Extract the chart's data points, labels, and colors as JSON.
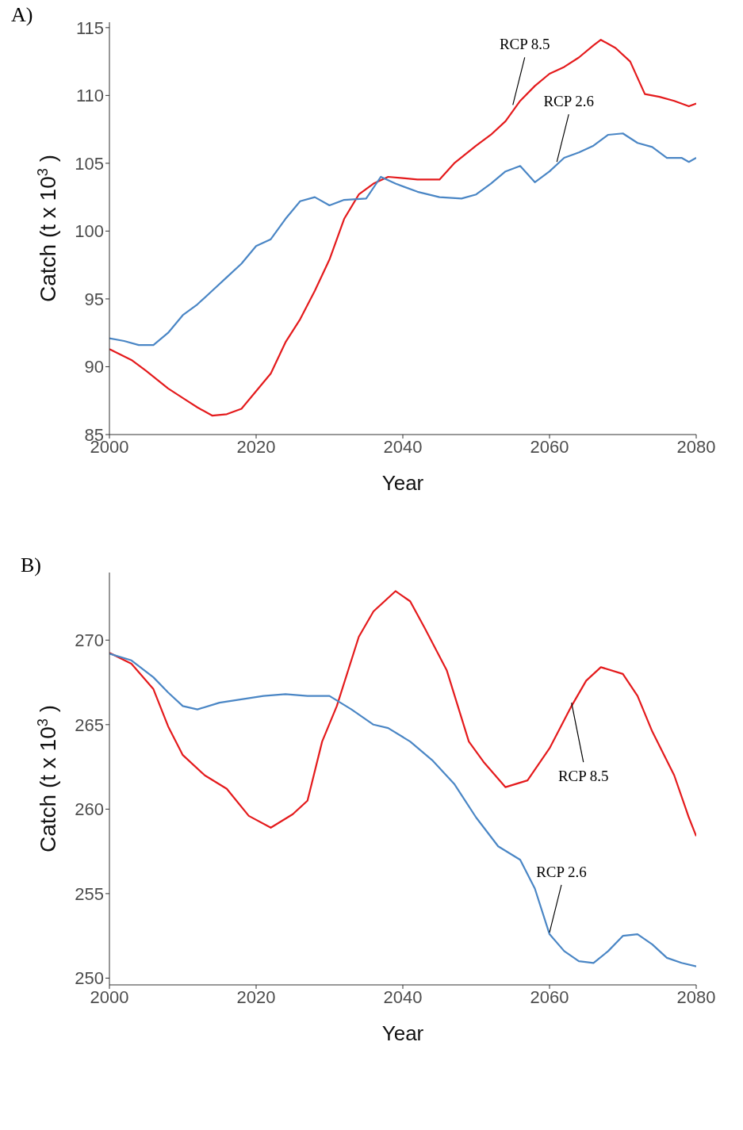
{
  "chart_data": [
    {
      "type": "line",
      "xlabel": "Year",
      "ylabel": "Catch (t x 10$^{3}$ )",
      "xlim": [
        2000,
        2080
      ],
      "xticks": [
        2000,
        2020,
        2040,
        2060,
        2080
      ],
      "ylim": [
        85,
        115.4
      ],
      "yticks": [
        85,
        90,
        95,
        100,
        105,
        110,
        115
      ],
      "grid": false,
      "legend": false,
      "marker": "none",
      "line_style": "solid",
      "annotations": [
        "A)",
        {
          "text": "RCP 8.5",
          "x": 2055,
          "y": 109.3
        },
        {
          "text": "RCP 2.6",
          "x": 2061,
          "y": 105.1
        }
      ],
      "series": [
        {
          "color": "#e41a1c",
          "x": [
            2000,
            2003,
            2005,
            2008,
            2010,
            2012,
            2014,
            2016,
            2018,
            2020,
            2022,
            2024,
            2026,
            2028,
            2030,
            2032,
            2034,
            2036,
            2038,
            2040,
            2042,
            2045,
            2047,
            2050,
            2052,
            2054,
            2056,
            2058,
            2060,
            2062,
            2064,
            2066,
            2067,
            2069,
            2071,
            2073,
            2075,
            2077,
            2079,
            2080
          ],
          "values": [
            91.3,
            90.5,
            89.7,
            88.4,
            87.7,
            87.0,
            86.4,
            86.5,
            86.9,
            88.2,
            89.5,
            91.8,
            93.5,
            95.6,
            97.9,
            100.9,
            102.7,
            103.5,
            104.0,
            103.9,
            103.8,
            103.8,
            105.0,
            106.3,
            107.1,
            108.1,
            109.6,
            110.7,
            111.6,
            112.1,
            112.8,
            113.7,
            114.1,
            113.5,
            112.5,
            110.1,
            109.9,
            109.6,
            109.2,
            109.4
          ]
        },
        {
          "color": "#4a86c5",
          "x": [
            2000,
            2002,
            2004,
            2006,
            2008,
            2010,
            2012,
            2014,
            2016,
            2018,
            2020,
            2022,
            2024,
            2026,
            2028,
            2030,
            2032,
            2035,
            2037,
            2039,
            2042,
            2045,
            2048,
            2050,
            2052,
            2054,
            2056,
            2058,
            2060,
            2062,
            2064,
            2066,
            2068,
            2070,
            2072,
            2074,
            2076,
            2078,
            2079,
            2080
          ],
          "values": [
            92.1,
            91.9,
            91.6,
            91.6,
            92.5,
            93.8,
            94.6,
            95.6,
            96.6,
            97.6,
            98.9,
            99.4,
            100.9,
            102.2,
            102.5,
            101.9,
            102.3,
            102.4,
            104.0,
            103.5,
            102.9,
            102.5,
            102.4,
            102.7,
            103.5,
            104.4,
            104.8,
            103.6,
            104.4,
            105.4,
            105.8,
            106.3,
            107.1,
            107.2,
            106.5,
            106.2,
            105.4,
            105.4,
            105.1,
            105.4
          ]
        }
      ]
    },
    {
      "type": "line",
      "xlabel": "Year",
      "ylabel": "Catch (t x 10$^{3}$ )",
      "xlim": [
        2000,
        2080
      ],
      "xticks": [
        2000,
        2020,
        2040,
        2060,
        2080
      ],
      "ylim": [
        249.6,
        274
      ],
      "yticks": [
        250,
        255,
        260,
        265,
        270
      ],
      "grid": false,
      "legend": false,
      "marker": "none",
      "line_style": "solid",
      "annotations": [
        "B)",
        {
          "text": "RCP 8.5",
          "x": 2063,
          "y": 266.3
        },
        {
          "text": "RCP 2.6",
          "x": 2060,
          "y": 252.7
        }
      ],
      "series": [
        {
          "color": "#e41a1c",
          "x": [
            2000,
            2003,
            2006,
            2008,
            2010,
            2013,
            2016,
            2019,
            2022,
            2025,
            2027,
            2029,
            2031,
            2034,
            2036,
            2039,
            2041,
            2043,
            2046,
            2049,
            2051,
            2054,
            2057,
            2060,
            2063,
            2065,
            2067,
            2070,
            2072,
            2074,
            2077,
            2079,
            2080
          ],
          "values": [
            269.25,
            268.6,
            267.1,
            264.9,
            263.2,
            262.0,
            261.2,
            259.6,
            258.9,
            259.7,
            260.5,
            264.0,
            266.1,
            270.2,
            271.7,
            272.9,
            272.3,
            270.7,
            268.2,
            264.0,
            262.8,
            261.3,
            261.7,
            263.6,
            266.1,
            267.6,
            268.4,
            268.0,
            266.7,
            264.6,
            262.0,
            259.5,
            258.4
          ]
        },
        {
          "color": "#4a86c5",
          "x": [
            2000,
            2003,
            2006,
            2008,
            2010,
            2012,
            2015,
            2018,
            2021,
            2024,
            2027,
            2030,
            2033,
            2036,
            2038,
            2041,
            2044,
            2047,
            2050,
            2053,
            2056,
            2058,
            2060,
            2062,
            2064,
            2066,
            2068,
            2070,
            2072,
            2074,
            2076,
            2078,
            2080
          ],
          "values": [
            269.2,
            268.8,
            267.8,
            266.9,
            266.1,
            265.9,
            266.3,
            266.5,
            266.7,
            266.8,
            266.7,
            266.7,
            265.9,
            265.0,
            264.8,
            264.0,
            262.9,
            261.5,
            259.5,
            257.8,
            257.0,
            255.3,
            252.6,
            251.6,
            251.0,
            250.9,
            251.6,
            252.5,
            252.6,
            252.0,
            251.2,
            250.9,
            250.7
          ]
        }
      ]
    }
  ]
}
